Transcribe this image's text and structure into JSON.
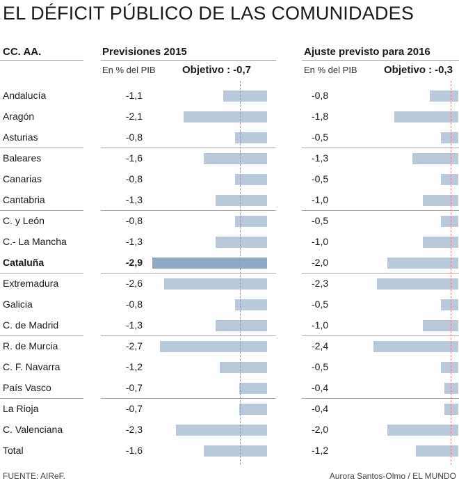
{
  "title": "EL DÉFICIT PÚBLICO DE LAS COMUNIDADES",
  "header": {
    "region_col": "CC. AA.",
    "col1_title": "Previsiones 2015",
    "col2_title": "Ajuste previsto para 2016",
    "unit1": "En % del PIB",
    "unit2": "En % del PIB",
    "objective_label": "Objetivo :",
    "objective1": "-0,7",
    "objective2": "-0,3"
  },
  "footer": {
    "source": "FUENTE: AIReF.",
    "credit": "Aurora Santos-Olmo / EL MUNDO"
  },
  "colors": {
    "bar": "#b9c9d9",
    "bar_highlight": "#8ea9c1",
    "target_line": "#e07b8e"
  },
  "chart_data": [
    {
      "type": "bar",
      "orientation": "horizontal",
      "title": "Previsiones 2015",
      "unit": "En % del PIB",
      "objective": -0.7,
      "categories": [
        "Andalucía",
        "Aragón",
        "Asturias",
        "Baleares",
        "Canarias",
        "Cantabria",
        "C. y León",
        "C.- La Mancha",
        "Cataluña",
        "Extremadura",
        "Galicia",
        "C. de Madrid",
        "R. de Murcia",
        "C. F. Navarra",
        "País Vasco",
        "La Rioja",
        "C. Valenciana",
        "Total"
      ],
      "values": [
        -1.1,
        -2.1,
        -0.8,
        -1.6,
        -0.8,
        -1.3,
        -0.8,
        -1.3,
        -2.9,
        -2.6,
        -0.8,
        -1.3,
        -2.7,
        -1.2,
        -0.7,
        -0.7,
        -2.3,
        -1.6
      ],
      "labels": [
        "-1,1",
        "-2,1",
        "-0,8",
        "-1,6",
        "-0,8",
        "-1,3",
        "-0,8",
        "-1,3",
        "-2,9",
        "-2,6",
        "-0,8",
        "-1,3",
        "-2,7",
        "-1,2",
        "-0,7",
        "-0,7",
        "-2,3",
        "-1,6"
      ],
      "highlight": "Cataluña",
      "xlim": [
        -3.0,
        0
      ]
    },
    {
      "type": "bar",
      "orientation": "horizontal",
      "title": "Ajuste previsto para 2016",
      "unit": "En % del PIB",
      "objective": -0.3,
      "categories": [
        "Andalucía",
        "Aragón",
        "Asturias",
        "Baleares",
        "Canarias",
        "Cantabria",
        "C. y León",
        "C.- La Mancha",
        "Cataluña",
        "Extremadura",
        "Galicia",
        "C. de Madrid",
        "R. de Murcia",
        "C. F. Navarra",
        "País Vasco",
        "La Rioja",
        "C. Valenciana",
        "Total"
      ],
      "values": [
        -0.8,
        -1.8,
        -0.5,
        -1.3,
        -0.5,
        -1.0,
        -0.5,
        -1.0,
        -2.0,
        -2.3,
        -0.5,
        -1.0,
        -2.4,
        -0.5,
        -0.4,
        -0.4,
        -2.0,
        -1.2
      ],
      "labels": [
        "-0,8",
        "-1,8",
        "-0,5",
        "-1,3",
        "-0,5",
        "-1,0",
        "-0,5",
        "-1,0",
        "-2,0",
        "-2,3",
        "-0,5",
        "-1,0",
        "-2,4",
        "-0,5",
        "-0,4",
        "-0,4",
        "-2,0",
        "-1,2"
      ],
      "xlim": [
        -2.5,
        0
      ]
    }
  ]
}
